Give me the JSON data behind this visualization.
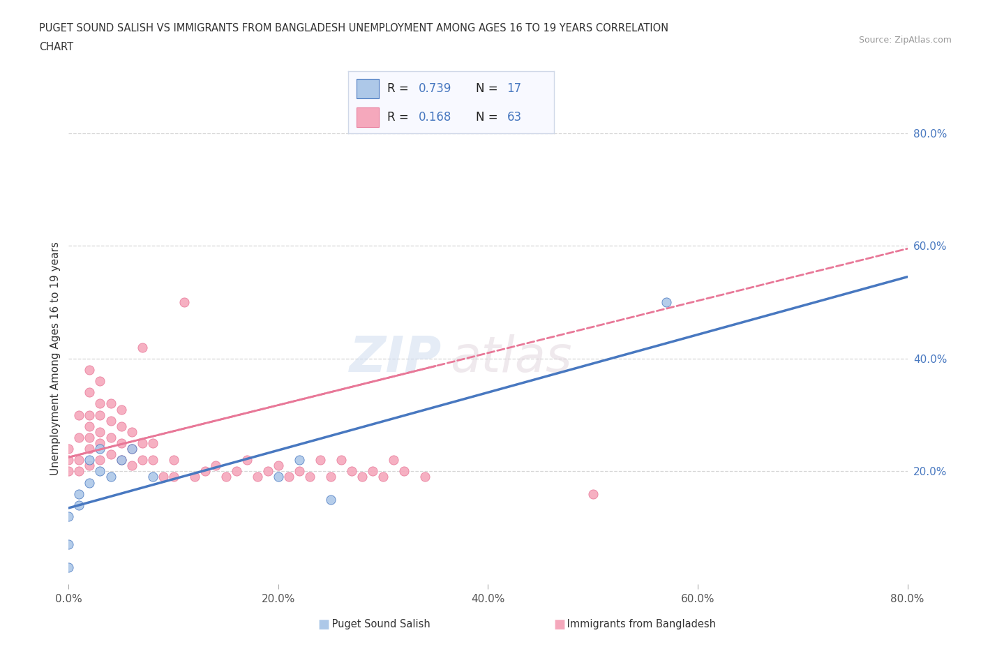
{
  "title_line1": "PUGET SOUND SALISH VS IMMIGRANTS FROM BANGLADESH UNEMPLOYMENT AMONG AGES 16 TO 19 YEARS CORRELATION",
  "title_line2": "CHART",
  "source": "Source: ZipAtlas.com",
  "ylabel": "Unemployment Among Ages 16 to 19 years",
  "xlim": [
    0.0,
    0.8
  ],
  "ylim": [
    0.0,
    0.8
  ],
  "xticks": [
    0.0,
    0.2,
    0.4,
    0.6,
    0.8
  ],
  "yticks": [
    0.2,
    0.4,
    0.6,
    0.8
  ],
  "xticklabels": [
    "0.0%",
    "20.0%",
    "40.0%",
    "60.0%",
    "80.0%"
  ],
  "yticklabels_right": [
    "20.0%",
    "40.0%",
    "60.0%",
    "80.0%"
  ],
  "grid_color": "#cccccc",
  "background_color": "#ffffff",
  "puget_color": "#adc8e8",
  "bangladesh_color": "#f5a8bc",
  "puget_line_color": "#4878c0",
  "bangladesh_line_color": "#e87898",
  "puget_R": 0.739,
  "puget_N": 17,
  "bangladesh_R": 0.168,
  "bangladesh_N": 63,
  "puget_line_x0": 0.0,
  "puget_line_y0": 0.135,
  "puget_line_x1": 0.8,
  "puget_line_y1": 0.545,
  "bangladesh_line_x0": 0.0,
  "bangladesh_line_y0": 0.225,
  "bangladesh_line_x1": 0.8,
  "bangladesh_line_y1": 0.595,
  "puget_scatter_x": [
    0.0,
    0.0,
    0.01,
    0.02,
    0.02,
    0.03,
    0.03,
    0.04,
    0.05,
    0.06,
    0.08,
    0.2,
    0.22,
    0.25,
    0.57,
    0.0,
    0.01
  ],
  "puget_scatter_y": [
    0.07,
    0.03,
    0.14,
    0.18,
    0.22,
    0.2,
    0.24,
    0.19,
    0.22,
    0.24,
    0.19,
    0.19,
    0.22,
    0.15,
    0.5,
    0.12,
    0.16
  ],
  "bangladesh_scatter_x": [
    0.0,
    0.0,
    0.0,
    0.01,
    0.01,
    0.01,
    0.01,
    0.02,
    0.02,
    0.02,
    0.02,
    0.02,
    0.02,
    0.02,
    0.03,
    0.03,
    0.03,
    0.03,
    0.03,
    0.03,
    0.04,
    0.04,
    0.04,
    0.04,
    0.05,
    0.05,
    0.05,
    0.05,
    0.06,
    0.06,
    0.06,
    0.07,
    0.07,
    0.07,
    0.08,
    0.08,
    0.09,
    0.1,
    0.1,
    0.11,
    0.12,
    0.13,
    0.14,
    0.15,
    0.16,
    0.17,
    0.18,
    0.19,
    0.2,
    0.21,
    0.22,
    0.23,
    0.24,
    0.25,
    0.26,
    0.27,
    0.28,
    0.29,
    0.3,
    0.31,
    0.32,
    0.34,
    0.5
  ],
  "bangladesh_scatter_y": [
    0.2,
    0.22,
    0.24,
    0.2,
    0.22,
    0.26,
    0.3,
    0.21,
    0.24,
    0.26,
    0.28,
    0.3,
    0.34,
    0.38,
    0.22,
    0.25,
    0.27,
    0.3,
    0.32,
    0.36,
    0.23,
    0.26,
    0.29,
    0.32,
    0.22,
    0.25,
    0.28,
    0.31,
    0.21,
    0.24,
    0.27,
    0.22,
    0.25,
    0.42,
    0.22,
    0.25,
    0.19,
    0.19,
    0.22,
    0.5,
    0.19,
    0.2,
    0.21,
    0.19,
    0.2,
    0.22,
    0.19,
    0.2,
    0.21,
    0.19,
    0.2,
    0.19,
    0.22,
    0.19,
    0.22,
    0.2,
    0.19,
    0.2,
    0.19,
    0.22,
    0.2,
    0.19,
    0.16
  ],
  "legend_box_facecolor": "#f8f9ff",
  "legend_box_edgecolor": "#d0d8e8",
  "legend_text_color": "#4878c0",
  "legend_label_color": "#222222"
}
